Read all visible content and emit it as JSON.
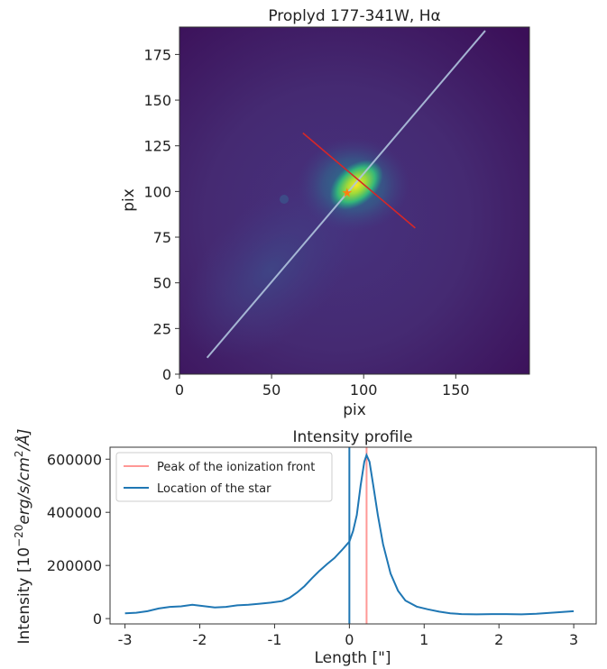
{
  "chart_data": [
    {
      "type": "heatmap",
      "title": "Proplyd 177-341W, Hα",
      "xlabel": "pix",
      "ylabel": "pix",
      "xlim": [
        0,
        190
      ],
      "ylim": [
        0,
        190
      ],
      "xticks": [
        0,
        50,
        100,
        150
      ],
      "yticks": [
        0,
        25,
        50,
        75,
        100,
        125,
        150,
        175
      ],
      "colormap": "viridis",
      "bright_center": [
        97,
        103
      ],
      "overlays": {
        "diagonal_line": {
          "color": "#b0c4de",
          "from": [
            15,
            9
          ],
          "to": [
            166,
            188
          ]
        },
        "red_line": {
          "color": "#d62728",
          "from": [
            67,
            132
          ],
          "to": [
            128,
            80
          ]
        },
        "star_marker": {
          "color": "#ff7f0e",
          "at": [
            91,
            99
          ]
        }
      }
    },
    {
      "type": "line",
      "title": "Intensity profile",
      "xlabel": "Length [\"]",
      "ylabel_parts": [
        "Intensity [10",
        "−20",
        "erg/s/cm",
        "2",
        "/Å]"
      ],
      "xlim": [
        -3.2,
        3.3
      ],
      "ylim": [
        -20000,
        645000
      ],
      "xticks": [
        -3,
        -2,
        -1,
        0,
        1,
        2,
        3
      ],
      "ytick_values": [
        0,
        200000,
        400000,
        600000
      ],
      "xtick_labels": [
        "-3",
        "-2",
        "-1",
        "0",
        "1",
        "2",
        "3"
      ],
      "ytick_labels": [
        "0",
        "200000",
        "400000",
        "600000"
      ],
      "grid": false,
      "legend_placement": "top-left",
      "series": [
        {
          "color": "#1f77b4",
          "x": [
            -3.0,
            -2.85,
            -2.7,
            -2.55,
            -2.4,
            -2.25,
            -2.1,
            -1.95,
            -1.8,
            -1.65,
            -1.5,
            -1.35,
            -1.2,
            -1.05,
            -0.9,
            -0.8,
            -0.7,
            -0.6,
            -0.5,
            -0.4,
            -0.3,
            -0.2,
            -0.1,
            0.0,
            0.05,
            0.1,
            0.15,
            0.2,
            0.23,
            0.27,
            0.32,
            0.38,
            0.45,
            0.55,
            0.65,
            0.75,
            0.9,
            1.05,
            1.2,
            1.35,
            1.5,
            1.7,
            1.9,
            2.1,
            2.3,
            2.5,
            2.7,
            2.85,
            3.0
          ],
          "values": [
            20000,
            22000,
            28000,
            38000,
            44000,
            46000,
            52000,
            47000,
            42000,
            44000,
            50000,
            52000,
            56000,
            60000,
            66000,
            78000,
            98000,
            122000,
            152000,
            180000,
            205000,
            228000,
            258000,
            290000,
            330000,
            390000,
            500000,
            590000,
            615000,
            590000,
            500000,
            390000,
            280000,
            170000,
            105000,
            68000,
            45000,
            35000,
            26000,
            20000,
            17000,
            16000,
            17000,
            17000,
            16000,
            18000,
            22000,
            25000,
            28000
          ]
        }
      ],
      "vlines": [
        {
          "label": "Peak of the ionization front",
          "x": 0.23,
          "color": "#ff9896"
        },
        {
          "label": "Location of the star",
          "x": 0.0,
          "color": "#1f77b4"
        }
      ]
    }
  ]
}
